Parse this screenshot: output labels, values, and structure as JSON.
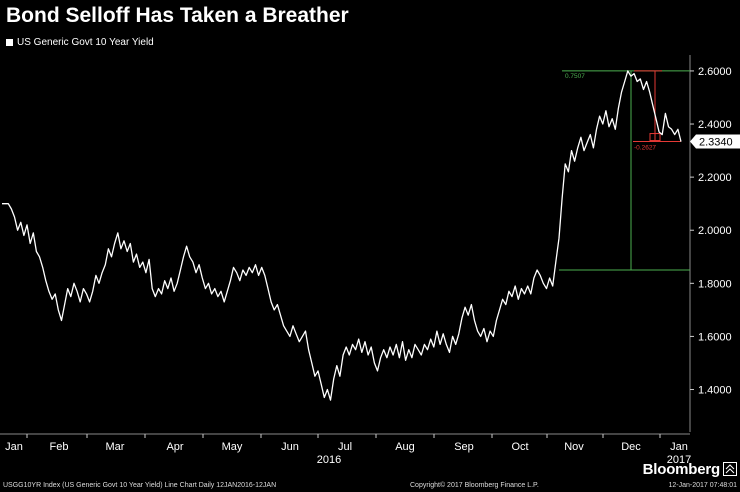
{
  "chart_data": {
    "type": "line",
    "title": "Bond Selloff Has Taken a Breather",
    "legend": "US Generic Govt 10 Year Yield",
    "legend_position": "top-left",
    "y_axis_side": "right",
    "ylim": [
      1.24,
      2.66
    ],
    "yticks": [
      1.4,
      1.6,
      1.8,
      2.0,
      2.2,
      2.4,
      2.6
    ],
    "ytick_labels": [
      "1.4000",
      "1.6000",
      "1.8000",
      "2.0000",
      "2.2000",
      "2.4000",
      "2.6000"
    ],
    "x_labels": [
      "Jan",
      "Feb",
      "Mar",
      "Apr",
      "May",
      "Jun",
      "Jul",
      "Aug",
      "Sep",
      "Oct",
      "Nov",
      "Dec",
      "Jan"
    ],
    "year_labels": [
      "2016",
      "2017"
    ],
    "last_value_label": "2.3340",
    "series": [
      {
        "values": [
          [
            1,
            2.1
          ],
          [
            3,
            2.1
          ],
          [
            4,
            2.08
          ],
          [
            5,
            2.05
          ],
          [
            6,
            2.0
          ],
          [
            7,
            2.03
          ],
          [
            8,
            1.98
          ],
          [
            9,
            2.02
          ],
          [
            10,
            1.95
          ],
          [
            11,
            1.99
          ],
          [
            12,
            1.92
          ],
          [
            13,
            1.9
          ],
          [
            14,
            1.86
          ],
          [
            15,
            1.81
          ],
          [
            16,
            1.77
          ],
          [
            17,
            1.74
          ],
          [
            18,
            1.76
          ],
          [
            19,
            1.7
          ],
          [
            20,
            1.66
          ],
          [
            21,
            1.72
          ],
          [
            22,
            1.78
          ],
          [
            23,
            1.75
          ],
          [
            24,
            1.8
          ],
          [
            25,
            1.77
          ],
          [
            26,
            1.73
          ],
          [
            27,
            1.78
          ],
          [
            28,
            1.76
          ],
          [
            29,
            1.73
          ],
          [
            30,
            1.77
          ],
          [
            31,
            1.83
          ],
          [
            32,
            1.8
          ],
          [
            33,
            1.84
          ],
          [
            34,
            1.87
          ],
          [
            35,
            1.93
          ],
          [
            36,
            1.9
          ],
          [
            37,
            1.95
          ],
          [
            38,
            1.99
          ],
          [
            39,
            1.93
          ],
          [
            40,
            1.96
          ],
          [
            41,
            1.92
          ],
          [
            42,
            1.95
          ],
          [
            43,
            1.88
          ],
          [
            44,
            1.91
          ],
          [
            45,
            1.86
          ],
          [
            46,
            1.88
          ],
          [
            47,
            1.84
          ],
          [
            48,
            1.89
          ],
          [
            49,
            1.78
          ],
          [
            50,
            1.75
          ],
          [
            51,
            1.78
          ],
          [
            52,
            1.76
          ],
          [
            53,
            1.81
          ],
          [
            54,
            1.78
          ],
          [
            55,
            1.82
          ],
          [
            56,
            1.77
          ],
          [
            57,
            1.8
          ],
          [
            58,
            1.85
          ],
          [
            59,
            1.9
          ],
          [
            60,
            1.94
          ],
          [
            61,
            1.9
          ],
          [
            62,
            1.88
          ],
          [
            63,
            1.84
          ],
          [
            64,
            1.87
          ],
          [
            65,
            1.82
          ],
          [
            66,
            1.78
          ],
          [
            67,
            1.8
          ],
          [
            68,
            1.76
          ],
          [
            69,
            1.78
          ],
          [
            70,
            1.75
          ],
          [
            71,
            1.77
          ],
          [
            72,
            1.73
          ],
          [
            73,
            1.77
          ],
          [
            74,
            1.81
          ],
          [
            75,
            1.86
          ],
          [
            76,
            1.84
          ],
          [
            77,
            1.81
          ],
          [
            78,
            1.85
          ],
          [
            79,
            1.83
          ],
          [
            80,
            1.86
          ],
          [
            81,
            1.84
          ],
          [
            82,
            1.87
          ],
          [
            83,
            1.83
          ],
          [
            84,
            1.86
          ],
          [
            85,
            1.83
          ],
          [
            86,
            1.78
          ],
          [
            87,
            1.73
          ],
          [
            88,
            1.7
          ],
          [
            89,
            1.72
          ],
          [
            90,
            1.68
          ],
          [
            91,
            1.64
          ],
          [
            92,
            1.62
          ],
          [
            93,
            1.6
          ],
          [
            94,
            1.64
          ],
          [
            95,
            1.61
          ],
          [
            96,
            1.58
          ],
          [
            97,
            1.6
          ],
          [
            98,
            1.62
          ],
          [
            99,
            1.55
          ],
          [
            100,
            1.5
          ],
          [
            101,
            1.45
          ],
          [
            102,
            1.47
          ],
          [
            103,
            1.42
          ],
          [
            104,
            1.37
          ],
          [
            105,
            1.4
          ],
          [
            106,
            1.36
          ],
          [
            107,
            1.44
          ],
          [
            108,
            1.49
          ],
          [
            109,
            1.45
          ],
          [
            110,
            1.53
          ],
          [
            111,
            1.56
          ],
          [
            112,
            1.53
          ],
          [
            113,
            1.57
          ],
          [
            114,
            1.55
          ],
          [
            115,
            1.59
          ],
          [
            116,
            1.54
          ],
          [
            117,
            1.58
          ],
          [
            118,
            1.53
          ],
          [
            119,
            1.56
          ],
          [
            120,
            1.5
          ],
          [
            121,
            1.47
          ],
          [
            122,
            1.52
          ],
          [
            123,
            1.55
          ],
          [
            124,
            1.52
          ],
          [
            125,
            1.56
          ],
          [
            126,
            1.53
          ],
          [
            127,
            1.57
          ],
          [
            128,
            1.52
          ],
          [
            129,
            1.58
          ],
          [
            130,
            1.51
          ],
          [
            131,
            1.55
          ],
          [
            132,
            1.52
          ],
          [
            133,
            1.57
          ],
          [
            134,
            1.55
          ],
          [
            135,
            1.53
          ],
          [
            136,
            1.57
          ],
          [
            137,
            1.55
          ],
          [
            138,
            1.59
          ],
          [
            139,
            1.56
          ],
          [
            140,
            1.62
          ],
          [
            141,
            1.57
          ],
          [
            142,
            1.61
          ],
          [
            143,
            1.57
          ],
          [
            144,
            1.54
          ],
          [
            145,
            1.6
          ],
          [
            146,
            1.57
          ],
          [
            147,
            1.61
          ],
          [
            148,
            1.67
          ],
          [
            149,
            1.71
          ],
          [
            150,
            1.68
          ],
          [
            151,
            1.72
          ],
          [
            152,
            1.66
          ],
          [
            153,
            1.62
          ],
          [
            154,
            1.6
          ],
          [
            155,
            1.63
          ],
          [
            156,
            1.58
          ],
          [
            157,
            1.62
          ],
          [
            158,
            1.6
          ],
          [
            159,
            1.66
          ],
          [
            160,
            1.7
          ],
          [
            161,
            1.74
          ],
          [
            162,
            1.72
          ],
          [
            163,
            1.77
          ],
          [
            164,
            1.75
          ],
          [
            165,
            1.79
          ],
          [
            166,
            1.74
          ],
          [
            167,
            1.78
          ],
          [
            168,
            1.76
          ],
          [
            169,
            1.79
          ],
          [
            170,
            1.76
          ],
          [
            171,
            1.82
          ],
          [
            172,
            1.85
          ],
          [
            173,
            1.83
          ],
          [
            174,
            1.8
          ],
          [
            175,
            1.78
          ],
          [
            176,
            1.82
          ],
          [
            177,
            1.79
          ],
          [
            178,
            1.88
          ],
          [
            179,
            1.97
          ],
          [
            180,
            2.12
          ],
          [
            181,
            2.25
          ],
          [
            182,
            2.22
          ],
          [
            183,
            2.3
          ],
          [
            184,
            2.26
          ],
          [
            185,
            2.31
          ],
          [
            186,
            2.35
          ],
          [
            187,
            2.3
          ],
          [
            188,
            2.33
          ],
          [
            189,
            2.36
          ],
          [
            190,
            2.31
          ],
          [
            191,
            2.38
          ],
          [
            192,
            2.43
          ],
          [
            193,
            2.4
          ],
          [
            194,
            2.45
          ],
          [
            195,
            2.39
          ],
          [
            196,
            2.42
          ],
          [
            197,
            2.38
          ],
          [
            198,
            2.46
          ],
          [
            199,
            2.52
          ],
          [
            200,
            2.56
          ],
          [
            201,
            2.6
          ],
          [
            202,
            2.58
          ],
          [
            203,
            2.59
          ],
          [
            204,
            2.56
          ],
          [
            205,
            2.57
          ],
          [
            206,
            2.53
          ],
          [
            207,
            2.56
          ],
          [
            208,
            2.52
          ],
          [
            209,
            2.47
          ],
          [
            210,
            2.42
          ],
          [
            211,
            2.37
          ],
          [
            212,
            2.36
          ],
          [
            213,
            2.44
          ],
          [
            214,
            2.39
          ],
          [
            215,
            2.38
          ],
          [
            216,
            2.36
          ],
          [
            217,
            2.38
          ],
          [
            218,
            2.334
          ]
        ]
      }
    ],
    "annotations": [
      {
        "text": "0.7507",
        "color": "#4caf50",
        "from_value": 1.85,
        "to_value": 2.6
      },
      {
        "text": "-0.2627",
        "color": "#e53935",
        "from_value": 2.6,
        "to_value": 2.334
      }
    ]
  },
  "brand": "Bloomberg",
  "footer": {
    "left": "USGG10YR Index (US Generic Govt 10 Year Yield) Line Chart  Daily 12JAN2016-12JAN",
    "mid": "Copyright© 2017 Bloomberg Finance L.P.",
    "right": "12-Jan-2017 07:48:01"
  }
}
